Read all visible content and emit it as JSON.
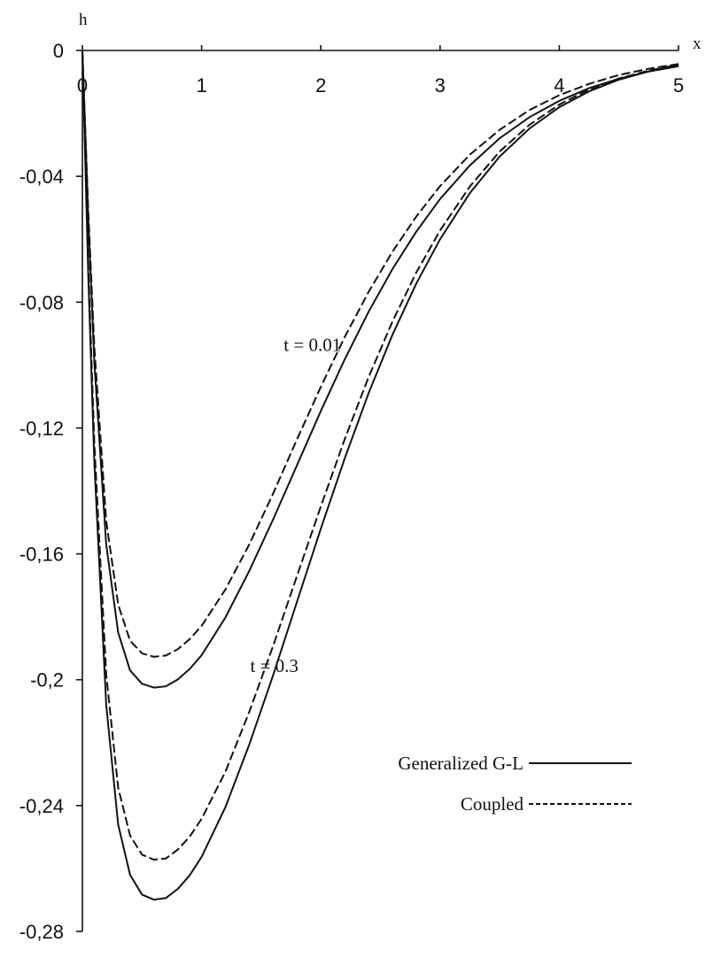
{
  "chart_data": {
    "type": "line",
    "xlabel": "x",
    "ylabel": "h",
    "xlim": [
      0,
      5
    ],
    "ylim": [
      -0.28,
      0
    ],
    "x_ticks": [
      {
        "value": 0,
        "label": "0"
      },
      {
        "value": 1,
        "label": "1"
      },
      {
        "value": 2,
        "label": "2"
      },
      {
        "value": 3,
        "label": "3"
      },
      {
        "value": 4,
        "label": "4"
      },
      {
        "value": 5,
        "label": "5"
      }
    ],
    "y_ticks": [
      {
        "value": 0,
        "label": "0"
      },
      {
        "value": -0.04,
        "label": "-0,04"
      },
      {
        "value": -0.08,
        "label": "-0,08"
      },
      {
        "value": -0.12,
        "label": "-0,12"
      },
      {
        "value": -0.16,
        "label": "-0,16"
      },
      {
        "value": -0.2,
        "label": "-0,2"
      },
      {
        "value": -0.24,
        "label": "-0,24"
      },
      {
        "value": -0.28,
        "label": "-0,28"
      }
    ],
    "x": [
      0,
      0.05,
      0.1,
      0.2,
      0.3,
      0.4,
      0.5,
      0.6,
      0.7,
      0.8,
      0.9,
      1.0,
      1.2,
      1.4,
      1.6,
      1.8,
      2.0,
      2.2,
      2.4,
      2.6,
      2.8,
      3.0,
      3.25,
      3.5,
      3.75,
      4.0,
      4.25,
      4.5,
      4.75,
      5.0
    ],
    "series": [
      {
        "style": "solid",
        "values": [
          0,
          -0.054,
          -0.099,
          -0.157,
          -0.185,
          -0.197,
          -0.2013,
          -0.2025,
          -0.2021,
          -0.1999,
          -0.1966,
          -0.1922,
          -0.1802,
          -0.1654,
          -0.149,
          -0.1318,
          -0.1146,
          -0.0982,
          -0.0831,
          -0.0695,
          -0.0576,
          -0.0472,
          -0.0365,
          -0.0279,
          -0.0212,
          -0.016,
          -0.012,
          -0.009,
          -0.0067,
          -0.005
        ]
      },
      {
        "style": "dashed",
        "values": [
          0,
          -0.0514,
          -0.0943,
          -0.1495,
          -0.1761,
          -0.1876,
          -0.1916,
          -0.1927,
          -0.1923,
          -0.1903,
          -0.1871,
          -0.1829,
          -0.1713,
          -0.157,
          -0.1408,
          -0.1236,
          -0.1069,
          -0.0911,
          -0.0768,
          -0.064,
          -0.0528,
          -0.0431,
          -0.0331,
          -0.0252,
          -0.0189,
          -0.0142,
          -0.0106,
          -0.0078,
          -0.0058,
          -0.0043
        ]
      },
      {
        "style": "solid",
        "values": [
          0,
          -0.072,
          -0.131,
          -0.208,
          -0.246,
          -0.262,
          -0.2683,
          -0.2699,
          -0.2694,
          -0.2665,
          -0.2622,
          -0.2563,
          -0.2405,
          -0.2206,
          -0.1985,
          -0.1752,
          -0.152,
          -0.1297,
          -0.109,
          -0.0904,
          -0.0741,
          -0.06,
          -0.0453,
          -0.0337,
          -0.0248,
          -0.018,
          -0.013,
          -0.0093,
          -0.0066,
          -0.0047
        ]
      },
      {
        "style": "dashed",
        "values": [
          0,
          -0.0686,
          -0.1249,
          -0.1983,
          -0.2343,
          -0.2495,
          -0.2556,
          -0.2572,
          -0.2568,
          -0.254,
          -0.2499,
          -0.2442,
          -0.2292,
          -0.2102,
          -0.1892,
          -0.167,
          -0.1449,
          -0.1236,
          -0.1039,
          -0.0862,
          -0.0706,
          -0.0572,
          -0.0432,
          -0.0321,
          -0.0236,
          -0.0172,
          -0.0124,
          -0.0089,
          -0.0064,
          -0.0045
        ]
      }
    ],
    "annotations": [
      {
        "text": "t = 0.01",
        "x": 1.93,
        "y": -0.0955
      },
      {
        "text": "t = 0.3",
        "x": 1.61,
        "y": -0.1975
      }
    ],
    "legend": {
      "placement": "bottom-right",
      "entries": [
        {
          "label": "Generalized G-L",
          "style": "solid"
        },
        {
          "label": "Coupled",
          "style": "dashed"
        }
      ]
    },
    "grid": false
  }
}
